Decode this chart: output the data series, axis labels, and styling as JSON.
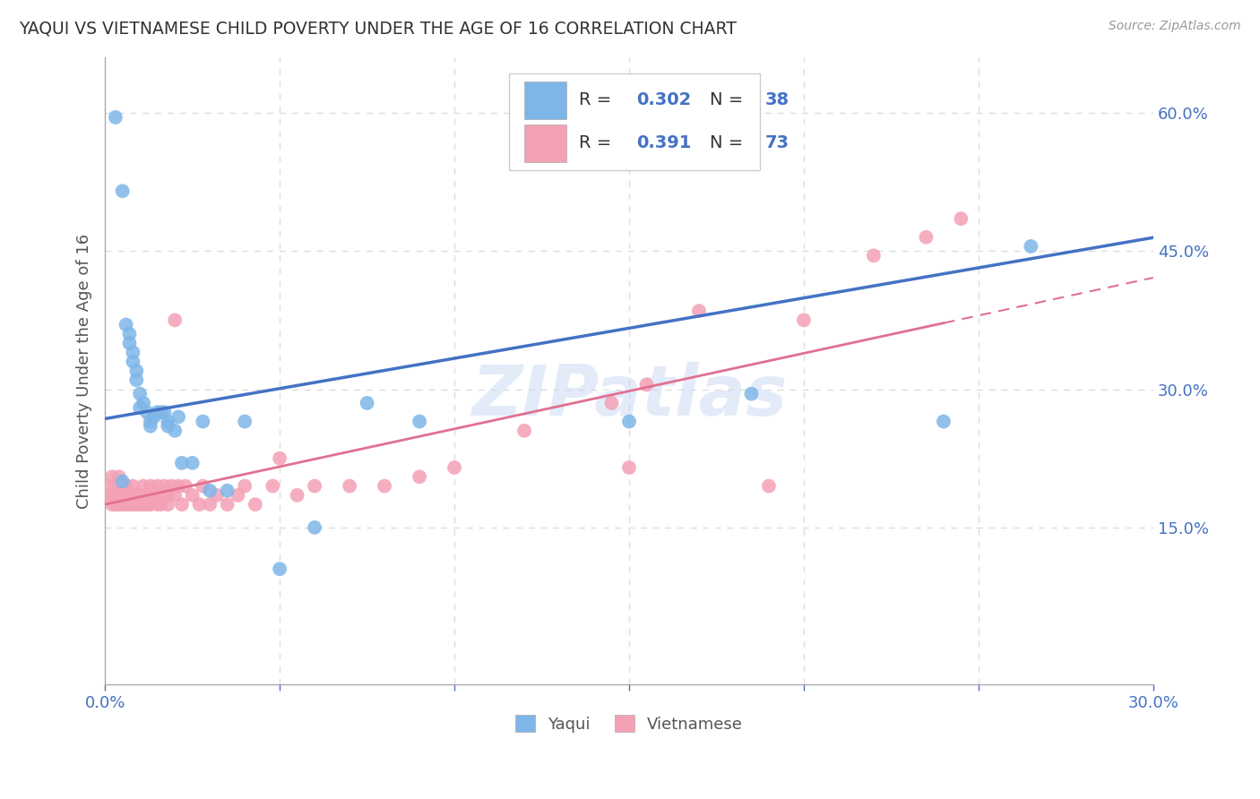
{
  "title": "YAQUI VS VIETNAMESE CHILD POVERTY UNDER THE AGE OF 16 CORRELATION CHART",
  "source": "Source: ZipAtlas.com",
  "ylabel": "Child Poverty Under the Age of 16",
  "xlim": [
    0.0,
    0.3
  ],
  "ylim": [
    -0.02,
    0.66
  ],
  "yaqui_color": "#7EB6E8",
  "vietnamese_color": "#F4A0B5",
  "yaqui_line_color": "#4472C4",
  "vietnamese_line_color": "#E07090",
  "legend_R_yaqui": "0.302",
  "legend_N_yaqui": "38",
  "legend_R_vietnamese": "0.391",
  "legend_N_vietnamese": "73",
  "watermark": "ZIPatlas",
  "yaqui_x": [
    0.003,
    0.005,
    0.005,
    0.006,
    0.007,
    0.007,
    0.008,
    0.008,
    0.009,
    0.009,
    0.01,
    0.01,
    0.011,
    0.012,
    0.013,
    0.013,
    0.014,
    0.015,
    0.016,
    0.017,
    0.018,
    0.018,
    0.02,
    0.021,
    0.022,
    0.025,
    0.028,
    0.03,
    0.035,
    0.04,
    0.05,
    0.06,
    0.075,
    0.09,
    0.15,
    0.185,
    0.24,
    0.265
  ],
  "yaqui_y": [
    0.595,
    0.515,
    0.2,
    0.37,
    0.36,
    0.35,
    0.34,
    0.33,
    0.32,
    0.31,
    0.295,
    0.28,
    0.285,
    0.275,
    0.265,
    0.26,
    0.27,
    0.275,
    0.275,
    0.275,
    0.265,
    0.26,
    0.255,
    0.27,
    0.22,
    0.22,
    0.265,
    0.19,
    0.19,
    0.265,
    0.105,
    0.15,
    0.285,
    0.265,
    0.265,
    0.295,
    0.265,
    0.455
  ],
  "vietnamese_x": [
    0.001,
    0.001,
    0.002,
    0.002,
    0.002,
    0.003,
    0.003,
    0.003,
    0.004,
    0.004,
    0.004,
    0.005,
    0.005,
    0.005,
    0.006,
    0.006,
    0.006,
    0.007,
    0.007,
    0.008,
    0.008,
    0.008,
    0.009,
    0.009,
    0.01,
    0.01,
    0.011,
    0.011,
    0.012,
    0.012,
    0.013,
    0.013,
    0.014,
    0.015,
    0.015,
    0.016,
    0.016,
    0.017,
    0.018,
    0.018,
    0.019,
    0.02,
    0.021,
    0.022,
    0.023,
    0.025,
    0.027,
    0.028,
    0.03,
    0.032,
    0.035,
    0.038,
    0.04,
    0.043,
    0.048,
    0.055,
    0.06,
    0.07,
    0.08,
    0.09,
    0.1,
    0.12,
    0.145,
    0.155,
    0.17,
    0.2,
    0.22,
    0.235,
    0.245,
    0.02,
    0.05,
    0.15,
    0.19
  ],
  "vietnamese_y": [
    0.195,
    0.185,
    0.175,
    0.185,
    0.205,
    0.175,
    0.185,
    0.195,
    0.175,
    0.185,
    0.205,
    0.175,
    0.185,
    0.195,
    0.175,
    0.185,
    0.195,
    0.175,
    0.185,
    0.175,
    0.185,
    0.195,
    0.175,
    0.185,
    0.175,
    0.185,
    0.175,
    0.195,
    0.175,
    0.185,
    0.175,
    0.195,
    0.185,
    0.175,
    0.195,
    0.175,
    0.185,
    0.195,
    0.175,
    0.185,
    0.195,
    0.185,
    0.195,
    0.175,
    0.195,
    0.185,
    0.175,
    0.195,
    0.175,
    0.185,
    0.175,
    0.185,
    0.195,
    0.175,
    0.195,
    0.185,
    0.195,
    0.195,
    0.195,
    0.205,
    0.215,
    0.255,
    0.285,
    0.305,
    0.385,
    0.375,
    0.445,
    0.465,
    0.485,
    0.375,
    0.225,
    0.215,
    0.195
  ],
  "background_color": "#ffffff",
  "grid_color": "#dddddd",
  "title_color": "#333333",
  "axis_label_color": "#555555",
  "tick_color_blue": "#4472C4",
  "figsize": [
    14.06,
    8.92
  ],
  "dpi": 100
}
